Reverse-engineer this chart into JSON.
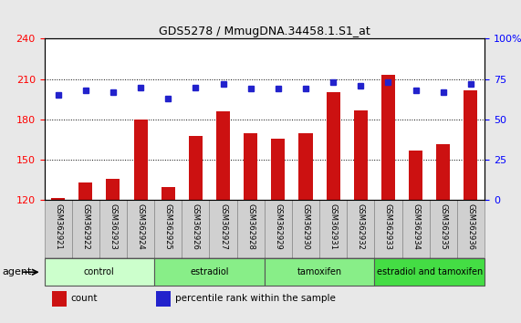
{
  "title": "GDS5278 / MmugDNA.34458.1.S1_at",
  "samples": [
    "GSM362921",
    "GSM362922",
    "GSM362923",
    "GSM362924",
    "GSM362925",
    "GSM362926",
    "GSM362927",
    "GSM362928",
    "GSM362929",
    "GSM362930",
    "GSM362931",
    "GSM362932",
    "GSM362933",
    "GSM362934",
    "GSM362935",
    "GSM362936"
  ],
  "counts": [
    122,
    133,
    136,
    180,
    130,
    168,
    186,
    170,
    166,
    170,
    200,
    187,
    213,
    157,
    162,
    202
  ],
  "percentile_ranks": [
    65,
    68,
    67,
    70,
    63,
    70,
    72,
    69,
    69,
    69,
    73,
    71,
    73,
    68,
    67,
    72
  ],
  "groups": [
    {
      "label": "control",
      "start": 0,
      "end": 3,
      "color": "#ccffcc"
    },
    {
      "label": "estradiol",
      "start": 4,
      "end": 7,
      "color": "#88ee88"
    },
    {
      "label": "tamoxifen",
      "start": 8,
      "end": 11,
      "color": "#88ee88"
    },
    {
      "label": "estradiol and tamoxifen",
      "start": 12,
      "end": 15,
      "color": "#44dd44"
    }
  ],
  "ylim_left": [
    120,
    240
  ],
  "ylim_right": [
    0,
    100
  ],
  "yticks_left": [
    120,
    150,
    180,
    210,
    240
  ],
  "yticks_right": [
    0,
    25,
    50,
    75,
    100
  ],
  "bar_color": "#cc1111",
  "dot_color": "#2222cc",
  "bar_width": 0.5,
  "agent_label": "agent",
  "legend_count_label": "count",
  "legend_pct_label": "percentile rank within the sample",
  "background_color": "#e8e8e8",
  "plot_bg_color": "#ffffff",
  "sample_box_color": "#d0d0d0",
  "grid_dotted_values": [
    150,
    180,
    210
  ]
}
